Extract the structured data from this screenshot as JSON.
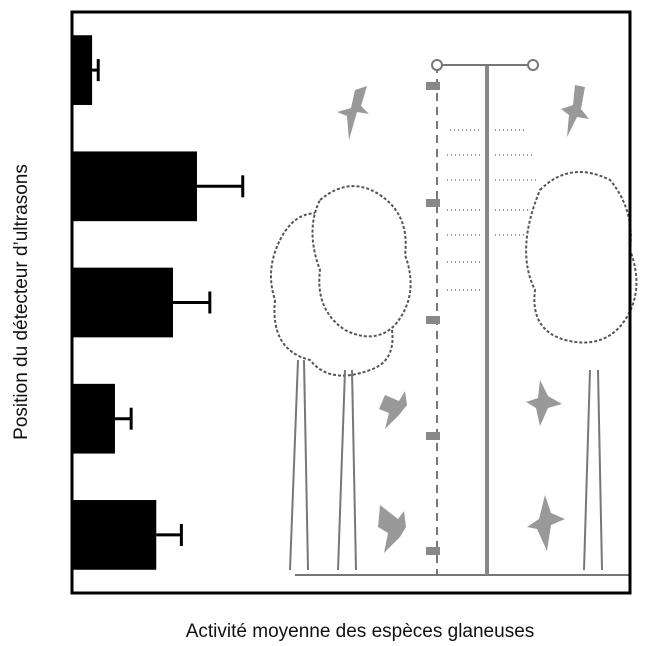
{
  "chart_data": {
    "type": "barh",
    "x_label": "Activité moyenne des espèces glaneuses",
    "y_label": "Position du détecteur d’ultrasons",
    "categories": [
      null,
      null,
      null,
      null,
      null
    ],
    "values": [
      3.6,
      22.4,
      18.1,
      7.7,
      15.1
    ],
    "errors": [
      1.1,
      8.2,
      6.6,
      2.9,
      4.5
    ],
    "color": "#000000",
    "xlim": [
      0,
      100
    ]
  }
}
